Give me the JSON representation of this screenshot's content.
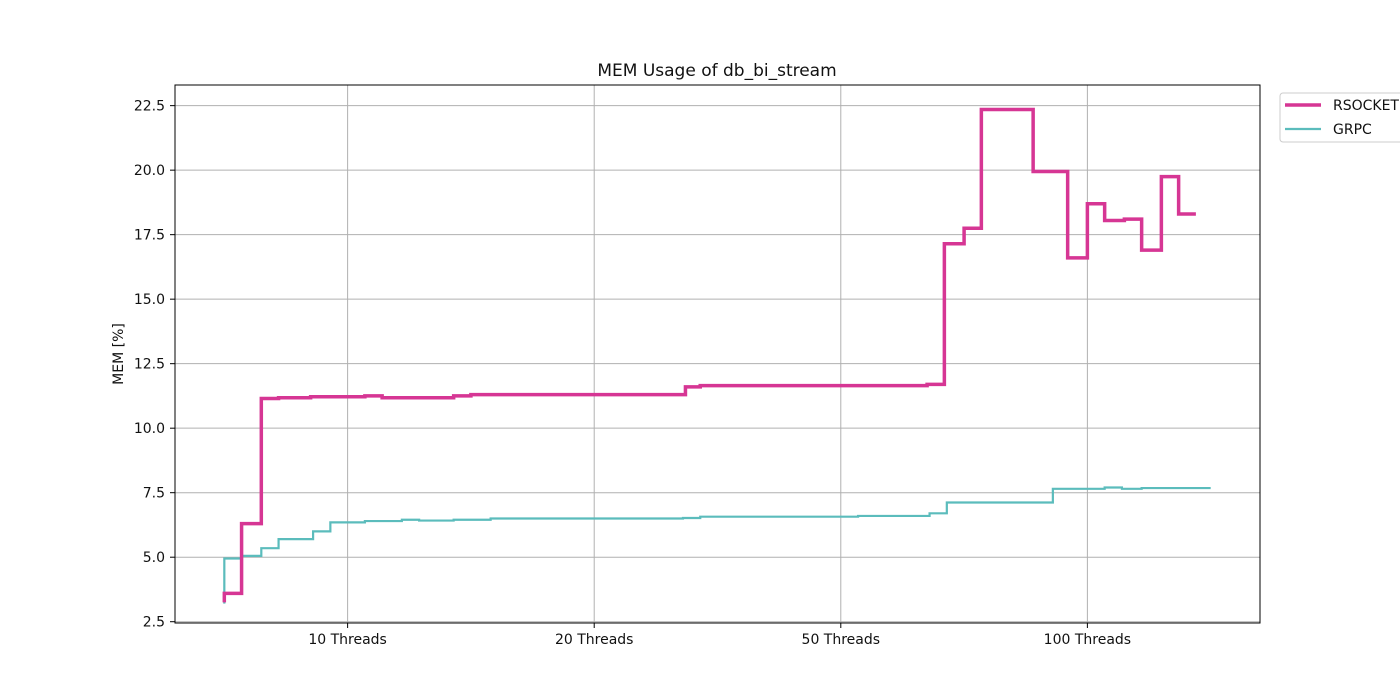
{
  "chart_data": {
    "type": "line",
    "title": "MEM Usage of db_bi_stream",
    "xlabel": "",
    "ylabel": "MEM [%]",
    "x_tick_labels": [
      "10 Threads",
      "20 Threads",
      "50 Threads",
      "100 Threads"
    ],
    "x_tick_positions": [
      10,
      20,
      30,
      40
    ],
    "xlim": [
      3,
      47
    ],
    "ylim": [
      2.45,
      23.3
    ],
    "y_ticks": [
      2.5,
      5.0,
      7.5,
      10.0,
      12.5,
      15.0,
      17.5,
      20.0,
      22.5
    ],
    "y_tick_labels": [
      "2.5",
      "5.0",
      "7.5",
      "10.0",
      "12.5",
      "15.0",
      "17.5",
      "20.0",
      "22.5"
    ],
    "grid": true,
    "legend_position": "outside top-right",
    "step": "post",
    "series": [
      {
        "name": "RSOCKET",
        "color": "#d63694",
        "line_style": "thick",
        "points": [
          {
            "x": 5.0,
            "y": 3.25
          },
          {
            "x": 5.0,
            "y": 3.6
          },
          {
            "x": 5.7,
            "y": 6.3
          },
          {
            "x": 6.5,
            "y": 11.15
          },
          {
            "x": 7.2,
            "y": 11.18
          },
          {
            "x": 8.5,
            "y": 11.22
          },
          {
            "x": 10.7,
            "y": 11.25
          },
          {
            "x": 11.4,
            "y": 11.18
          },
          {
            "x": 14.3,
            "y": 11.25
          },
          {
            "x": 15.0,
            "y": 11.3
          },
          {
            "x": 23.7,
            "y": 11.6
          },
          {
            "x": 24.3,
            "y": 11.65
          },
          {
            "x": 33.5,
            "y": 11.7
          },
          {
            "x": 34.2,
            "y": 17.15
          },
          {
            "x": 35.0,
            "y": 17.75
          },
          {
            "x": 35.7,
            "y": 22.35
          },
          {
            "x": 37.8,
            "y": 19.95
          },
          {
            "x": 39.2,
            "y": 16.6
          },
          {
            "x": 40.0,
            "y": 18.7
          },
          {
            "x": 40.7,
            "y": 18.05
          },
          {
            "x": 41.5,
            "y": 18.1
          },
          {
            "x": 42.2,
            "y": 16.9
          },
          {
            "x": 43.0,
            "y": 19.75
          },
          {
            "x": 43.7,
            "y": 18.3
          },
          {
            "x": 44.4,
            "y": 18.3
          }
        ]
      },
      {
        "name": "GRPC",
        "color": "#5bbcbc",
        "line_style": "thin",
        "points": [
          {
            "x": 5.0,
            "y": 3.2
          },
          {
            "x": 5.0,
            "y": 4.95
          },
          {
            "x": 5.7,
            "y": 5.05
          },
          {
            "x": 6.5,
            "y": 5.35
          },
          {
            "x": 7.2,
            "y": 5.7
          },
          {
            "x": 8.6,
            "y": 6.0
          },
          {
            "x": 9.3,
            "y": 6.35
          },
          {
            "x": 10.7,
            "y": 6.4
          },
          {
            "x": 12.2,
            "y": 6.45
          },
          {
            "x": 12.9,
            "y": 6.42
          },
          {
            "x": 14.3,
            "y": 6.45
          },
          {
            "x": 15.8,
            "y": 6.5
          },
          {
            "x": 23.6,
            "y": 6.52
          },
          {
            "x": 24.3,
            "y": 6.57
          },
          {
            "x": 30.7,
            "y": 6.6
          },
          {
            "x": 33.6,
            "y": 6.7
          },
          {
            "x": 34.3,
            "y": 7.12
          },
          {
            "x": 38.6,
            "y": 7.65
          },
          {
            "x": 40.7,
            "y": 7.7
          },
          {
            "x": 41.4,
            "y": 7.65
          },
          {
            "x": 42.2,
            "y": 7.68
          },
          {
            "x": 45.0,
            "y": 7.68
          }
        ]
      }
    ]
  }
}
